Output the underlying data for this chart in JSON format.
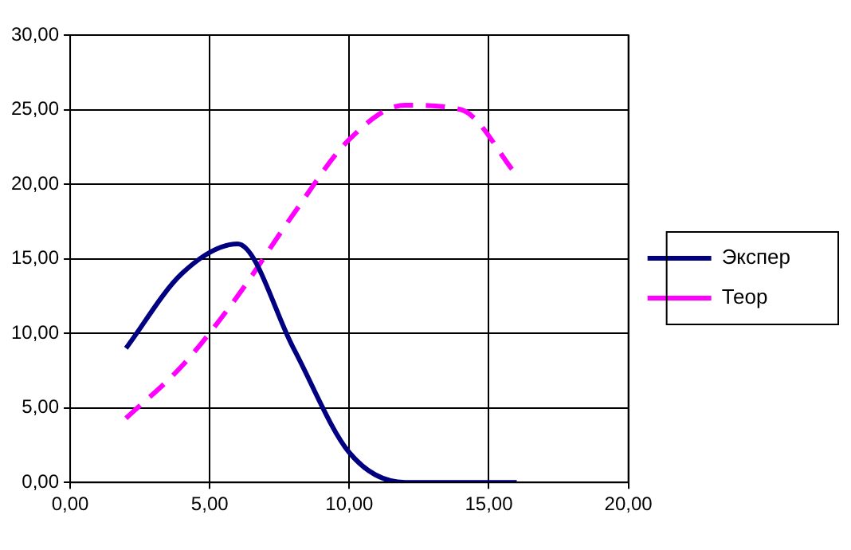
{
  "chart_data": {
    "type": "line",
    "x": [
      2,
      4,
      6,
      8,
      10,
      12,
      14,
      16
    ],
    "series": [
      {
        "name": "Экспер",
        "color": "#000080",
        "values": [
          9,
          14,
          16,
          9,
          2,
          0,
          0,
          0
        ],
        "line_style": "solid"
      },
      {
        "name": "Теор",
        "color": "#ff00ff",
        "values": [
          4.3,
          7.8,
          12.5,
          18,
          23,
          25.3,
          25,
          20.6
        ],
        "line_style": "dashed"
      }
    ],
    "xlim": [
      0,
      20
    ],
    "xticks": [
      {
        "value": 0,
        "label": "0,00"
      },
      {
        "value": 5,
        "label": "5,00"
      },
      {
        "value": 10,
        "label": "10,00"
      },
      {
        "value": 15,
        "label": "15,00"
      },
      {
        "value": 20,
        "label": "20,00"
      }
    ],
    "ylim": [
      0,
      30
    ],
    "yticks": [
      {
        "value": 0,
        "label": "0,00"
      },
      {
        "value": 5,
        "label": "5,00"
      },
      {
        "value": 10,
        "label": "10,00"
      },
      {
        "value": 15,
        "label": "15,00"
      },
      {
        "value": 20,
        "label": "20,00"
      },
      {
        "value": 25,
        "label": "25,00"
      },
      {
        "value": 30,
        "label": "30,00"
      }
    ],
    "grid": true,
    "legend": "right",
    "marker": "none"
  }
}
